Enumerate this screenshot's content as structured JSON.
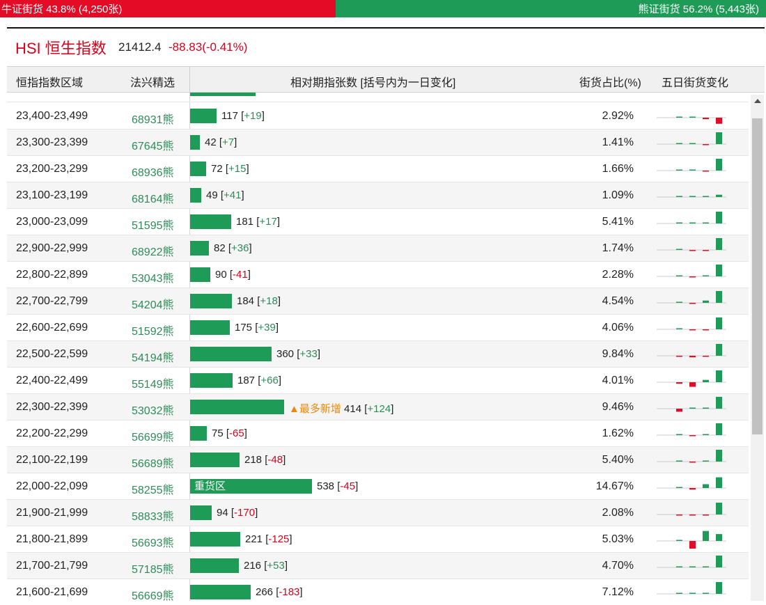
{
  "top": {
    "bull_label": "牛证街货 43.8% (4,250张)",
    "bear_label": "熊证街货 56.2% (5,443张)",
    "bull_share": 0.438
  },
  "index": {
    "title": "HSI 恒生指数",
    "price": "21412.4",
    "change": "-88.83(-0.41%)"
  },
  "headers": {
    "range": "恒指指数区域",
    "pick": "法兴精选",
    "relative": "相对期指张数 [括号内为一日变化]",
    "share": "街货占比(%)",
    "five_day": "五日街货变化"
  },
  "colors": {
    "bull": "#e30b26",
    "bear": "#1e9b56",
    "positive": "#2e8b57",
    "negative": "#d9001b",
    "highlight": "#e8890c"
  },
  "rows": [
    {
      "range": "23,400-23,499",
      "code": "68931熊",
      "count": 117,
      "count_text": "117",
      "delta": "+19",
      "share": "2.92%",
      "spark": [
        0,
        0,
        -0.2,
        -0.8,
        1.6
      ]
    },
    {
      "range": "23,300-23,399",
      "code": "67645熊",
      "count": 42,
      "count_text": "42",
      "delta": "+7",
      "share": "1.41%",
      "spark": [
        0,
        0.1,
        -0.1,
        1.6,
        0.2
      ]
    },
    {
      "range": "23,200-23,299",
      "code": "68936熊",
      "count": 72,
      "count_text": "72",
      "delta": "+15",
      "share": "1.66%",
      "spark": [
        0,
        0,
        -0.1,
        1.6,
        0.4
      ]
    },
    {
      "range": "23,100-23,199",
      "code": "68164熊",
      "count": 49,
      "count_text": "49",
      "delta": "+41",
      "share": "1.09%",
      "spark": [
        0,
        0,
        0,
        0.3,
        1.6
      ]
    },
    {
      "range": "23,000-23,099",
      "code": "51595熊",
      "count": 181,
      "count_text": "181",
      "delta": "+17",
      "share": "5.41%",
      "spark": [
        0,
        0.1,
        0.1,
        1.6,
        0.1
      ]
    },
    {
      "range": "22,900-22,999",
      "code": "68922熊",
      "count": 82,
      "count_text": "82",
      "delta": "+36",
      "share": "1.74%",
      "spark": [
        0,
        -0.1,
        -0.1,
        1.6,
        1.6
      ]
    },
    {
      "range": "22,800-22,899",
      "code": "53043熊",
      "count": 90,
      "count_text": "90",
      "delta": "-41",
      "share": "2.28%",
      "spark": [
        0,
        -0.1,
        0.1,
        1.6,
        -0.6
      ]
    },
    {
      "range": "22,700-22,799",
      "code": "54204熊",
      "count": 184,
      "count_text": "184",
      "delta": "+18",
      "share": "4.54%",
      "spark": [
        0,
        -0.1,
        0.3,
        1.6,
        0.3
      ]
    },
    {
      "range": "22,600-22,699",
      "code": "51592熊",
      "count": 175,
      "count_text": "175",
      "delta": "+39",
      "share": "4.06%",
      "spark": [
        0,
        -0.1,
        -0.1,
        1.6,
        0.6
      ]
    },
    {
      "range": "22,500-22,599",
      "code": "54194熊",
      "count": 360,
      "count_text": "360",
      "delta": "+33",
      "share": "9.84%",
      "spark": [
        -0.1,
        -0.2,
        -0.1,
        1.6,
        0.1
      ]
    },
    {
      "range": "22,400-22,499",
      "code": "55149熊",
      "count": 187,
      "count_text": "187",
      "delta": "+66",
      "share": "4.01%",
      "spark": [
        -0.2,
        -0.6,
        0.3,
        1.6,
        1.2
      ]
    },
    {
      "range": "22,300-22,399",
      "code": "53032熊",
      "count": 414,
      "count_text": "414",
      "delta": "+124",
      "share": "9.46%",
      "note": "▲最多新增",
      "spark": [
        -0.4,
        0,
        0.1,
        1.6,
        1.0
      ]
    },
    {
      "range": "22,200-22,299",
      "code": "56699熊",
      "count": 75,
      "count_text": "75",
      "delta": "-65",
      "share": "1.62%",
      "spark": [
        0,
        -0.1,
        0.1,
        1.6,
        -0.7
      ]
    },
    {
      "range": "22,100-22,199",
      "code": "56689熊",
      "count": 218,
      "count_text": "218",
      "delta": "-48",
      "share": "5.40%",
      "spark": [
        0,
        -0.1,
        0.1,
        1.6,
        -0.3
      ]
    },
    {
      "range": "22,000-22,099",
      "code": "58255熊",
      "count": 538,
      "count_text": "538",
      "delta": "-45",
      "share": "14.67%",
      "note": "重货区",
      "spark": [
        0,
        -0.2,
        0.5,
        1.4,
        -0.1
      ]
    },
    {
      "range": "21,900-21,999",
      "code": "58833熊",
      "count": 94,
      "count_text": "94",
      "delta": "-170",
      "share": "2.08%",
      "spark": [
        -0.1,
        -0.1,
        -0.1,
        1.6,
        -1.0
      ]
    },
    {
      "range": "21,800-21,899",
      "code": "56693熊",
      "count": 221,
      "count_text": "221",
      "delta": "-125",
      "share": "5.03%",
      "spark": [
        0,
        -1.0,
        1.3,
        0.9,
        -1.6
      ]
    },
    {
      "range": "21,700-21,799",
      "code": "57185熊",
      "count": 216,
      "count_text": "216",
      "delta": "+53",
      "share": "4.70%",
      "spark": [
        0,
        0.1,
        0.1,
        1.6,
        0.5
      ]
    },
    {
      "range": "21,600-21,699",
      "code": "56669熊",
      "count": 266,
      "count_text": "266",
      "delta": "-183",
      "share": "7.12%",
      "spark": [
        0,
        0.1,
        0.1,
        1.6,
        -0.6
      ]
    }
  ]
}
